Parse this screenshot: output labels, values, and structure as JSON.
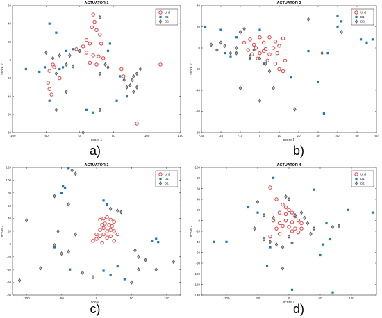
{
  "legend_labels": [
    "Und",
    "D1",
    "D2"
  ],
  "colors": {
    "Und": "#e8393c",
    "D1": "#1f77b4",
    "D2": "#555555"
  },
  "chart_data": [
    {
      "type": "scatter",
      "title": "ACTUATOR 1",
      "xlabel": "score 1",
      "ylabel": "score 2",
      "xlim": [
        -100,
        150
      ],
      "ylim": [
        -80,
        60
      ],
      "xticks": [
        "-100",
        "-50",
        "0",
        "50",
        "100",
        "150"
      ],
      "yticks": [
        "-80",
        "-60",
        "-40",
        "-20",
        "0",
        "20",
        "40",
        "60"
      ],
      "caption": "a)",
      "series": [
        {
          "name": "Und",
          "points": [
            [
              20,
              50
            ],
            [
              22,
              42
            ],
            [
              18,
              36
            ],
            [
              25,
              33
            ],
            [
              30,
              28
            ],
            [
              10,
              22
            ],
            [
              15,
              18
            ],
            [
              5,
              15
            ],
            [
              32,
              18
            ],
            [
              -5,
              12
            ],
            [
              10,
              8
            ],
            [
              20,
              5
            ],
            [
              28,
              4
            ],
            [
              35,
              2
            ],
            [
              15,
              -3
            ],
            [
              25,
              -5
            ],
            [
              -40,
              -5
            ],
            [
              -38,
              -8
            ],
            [
              -45,
              -12
            ],
            [
              -47,
              -25
            ],
            [
              -45,
              -32
            ],
            [
              -42,
              -38
            ],
            [
              -30,
              -20
            ],
            [
              62,
              -10
            ],
            [
              65,
              -18
            ],
            [
              120,
              -5
            ],
            [
              85,
              -70
            ]
          ]
        },
        {
          "name": "D1",
          "points": [
            [
              -45,
              40
            ],
            [
              -35,
              30
            ],
            [
              -80,
              -10
            ],
            [
              -60,
              -13
            ],
            [
              -52,
              -8
            ],
            [
              -20,
              10
            ],
            [
              -10,
              12
            ],
            [
              45,
              18
            ],
            [
              42,
              10
            ],
            [
              -30,
              -10
            ],
            [
              -25,
              -8
            ],
            [
              -45,
              -45
            ],
            [
              60,
              -18
            ],
            [
              70,
              -40
            ],
            [
              55,
              -45
            ],
            [
              10,
              -55
            ],
            [
              20,
              -58
            ]
          ]
        },
        {
          "name": "D2",
          "points": [
            [
              -50,
              8
            ],
            [
              -40,
              2
            ],
            [
              -30,
              5
            ],
            [
              0,
              10
            ],
            [
              30,
              47
            ],
            [
              -20,
              -5
            ],
            [
              -35,
              -15
            ],
            [
              -10,
              -7
            ],
            [
              30,
              -15
            ],
            [
              38,
              -5
            ],
            [
              42,
              -8
            ],
            [
              66,
              -22
            ],
            [
              70,
              -30
            ],
            [
              75,
              -28
            ],
            [
              78,
              -22
            ],
            [
              80,
              -18
            ],
            [
              85,
              -15
            ],
            [
              90,
              -10
            ],
            [
              -35,
              -55
            ],
            [
              -20,
              -35
            ],
            [
              30,
              -55
            ],
            [
              85,
              -30
            ],
            [
              80,
              -35
            ],
            [
              -15,
              5
            ],
            [
              5,
              -80
            ]
          ]
        }
      ]
    },
    {
      "type": "scatter",
      "title": "ACTUATOR 2",
      "xlabel": "score 1",
      "ylabel": "score 2",
      "xlim": [
        -30,
        60
      ],
      "ylim": [
        -80,
        40
      ],
      "xticks": [
        "-30",
        "-20",
        "-10",
        "0",
        "10",
        "20",
        "30",
        "40",
        "50",
        "60"
      ],
      "yticks": [
        "-80",
        "-60",
        "-40",
        "-20",
        "0",
        "20",
        "40"
      ],
      "caption": "b)",
      "series": [
        {
          "name": "Und",
          "points": [
            [
              -5,
              8
            ],
            [
              0,
              10
            ],
            [
              5,
              10
            ],
            [
              -8,
              5
            ],
            [
              -3,
              3
            ],
            [
              2,
              5
            ],
            [
              8,
              6
            ],
            [
              -6,
              -2
            ],
            [
              -2,
              0
            ],
            [
              3,
              -1
            ],
            [
              7,
              0
            ],
            [
              10,
              2
            ],
            [
              -4,
              -6
            ],
            [
              0,
              -5
            ],
            [
              5,
              -6
            ],
            [
              9,
              -5
            ],
            [
              -1,
              -10
            ],
            [
              4,
              -12
            ],
            [
              8,
              -15
            ],
            [
              10,
              -20
            ],
            [
              12,
              -22
            ],
            [
              12,
              9
            ],
            [
              2,
              -3
            ],
            [
              13,
              -12
            ]
          ]
        },
        {
          "name": "D1",
          "points": [
            [
              -28,
              20
            ],
            [
              -20,
              17
            ],
            [
              -12,
              10
            ],
            [
              -15,
              -8
            ],
            [
              -5,
              -10
            ],
            [
              0,
              17
            ],
            [
              -18,
              -5
            ],
            [
              25,
              -3
            ],
            [
              30,
              -32
            ],
            [
              33,
              -62
            ],
            [
              35,
              -5
            ],
            [
              40,
              30
            ],
            [
              42,
              25
            ],
            [
              40,
              20
            ],
            [
              52,
              8
            ],
            [
              55,
              5
            ],
            [
              58,
              8
            ],
            [
              16,
              -28
            ],
            [
              2,
              -15
            ]
          ]
        },
        {
          "name": "D2",
          "points": [
            [
              -25,
              3
            ],
            [
              -22,
              -2
            ],
            [
              -18,
              2
            ],
            [
              -15,
              -5
            ],
            [
              -12,
              0
            ],
            [
              -10,
              15
            ],
            [
              -8,
              18
            ],
            [
              -5,
              -8
            ],
            [
              -3,
              -2
            ],
            [
              0,
              -10
            ],
            [
              3,
              -15
            ],
            [
              5,
              -22
            ],
            [
              -10,
              -38
            ],
            [
              0,
              -50
            ],
            [
              7,
              -38
            ],
            [
              18,
              -58
            ],
            [
              25,
              27
            ],
            [
              32,
              -5
            ],
            [
              42,
              15
            ],
            [
              -20,
              5
            ],
            [
              -12,
              -5
            ]
          ]
        }
      ]
    },
    {
      "type": "scatter",
      "title": "ACTUATOR 3",
      "xlabel": "score 1",
      "ylabel": "score 2",
      "xlim": [
        -120,
        120
      ],
      "ylim": [
        -80,
        120
      ],
      "xticks": [
        "-100",
        "-50",
        "0",
        "50",
        "100"
      ],
      "yticks": [
        "-80",
        "-60",
        "-40",
        "-20",
        "0",
        "20",
        "40",
        "60",
        "80",
        "100",
        "120"
      ],
      "caption": "c)",
      "series": [
        {
          "name": "Und",
          "points": [
            [
              5,
              38
            ],
            [
              10,
              40
            ],
            [
              15,
              42
            ],
            [
              20,
              38
            ],
            [
              25,
              35
            ],
            [
              8,
              30
            ],
            [
              12,
              32
            ],
            [
              18,
              30
            ],
            [
              22,
              28
            ],
            [
              5,
              22
            ],
            [
              10,
              25
            ],
            [
              15,
              20
            ],
            [
              20,
              22
            ],
            [
              25,
              20
            ],
            [
              0,
              15
            ],
            [
              5,
              12
            ],
            [
              10,
              15
            ],
            [
              15,
              10
            ],
            [
              20,
              12
            ],
            [
              -5,
              5
            ],
            [
              0,
              8
            ],
            [
              8,
              2
            ],
            [
              25,
              5
            ],
            [
              30,
              15
            ]
          ]
        },
        {
          "name": "D1",
          "points": [
            [
              -40,
              118
            ],
            [
              -48,
              90
            ],
            [
              -45,
              88
            ],
            [
              -50,
              80
            ],
            [
              10,
              68
            ],
            [
              15,
              62
            ],
            [
              -60,
              -5
            ],
            [
              -38,
              -40
            ],
            [
              10,
              -42
            ],
            [
              20,
              -48
            ],
            [
              30,
              -35
            ],
            [
              40,
              -55
            ],
            [
              80,
              5
            ],
            [
              85,
              8
            ],
            [
              88,
              3
            ]
          ]
        },
        {
          "name": "D2",
          "points": [
            [
              -35,
              115
            ],
            [
              -30,
              110
            ],
            [
              -60,
              75
            ],
            [
              -40,
              62
            ],
            [
              20,
              55
            ],
            [
              30,
              52
            ],
            [
              35,
              50
            ],
            [
              -100,
              37
            ],
            [
              -55,
              20
            ],
            [
              -30,
              15
            ],
            [
              -60,
              -2
            ],
            [
              -40,
              -12
            ],
            [
              -50,
              -15
            ],
            [
              -80,
              -38
            ],
            [
              -20,
              -45
            ],
            [
              -5,
              -52
            ],
            [
              55,
              -10
            ],
            [
              60,
              -20
            ],
            [
              70,
              -25
            ],
            [
              60,
              -40
            ],
            [
              85,
              -40
            ],
            [
              110,
              -28
            ],
            [
              -110,
              -57
            ],
            [
              50,
              -60
            ]
          ]
        }
      ]
    },
    {
      "type": "scatter",
      "title": "ACTUATOR 4",
      "xlabel": "score 1",
      "ylabel": "score 2",
      "xlim": [
        -140,
        140
      ],
      "ylim": [
        -140,
        100
      ],
      "xticks": [
        "-100",
        "-50",
        "0",
        "50",
        "100"
      ],
      "yticks": [
        "-140",
        "-120",
        "-100",
        "-80",
        "-60",
        "-40",
        "-20",
        "0",
        "20",
        "40",
        "60",
        "80",
        "100"
      ],
      "caption": "d)",
      "series": [
        {
          "name": "Und",
          "points": [
            [
              -30,
              62
            ],
            [
              -20,
              40
            ],
            [
              -10,
              30
            ],
            [
              -5,
              25
            ],
            [
              0,
              20
            ],
            [
              -15,
              15
            ],
            [
              -5,
              12
            ],
            [
              5,
              15
            ],
            [
              10,
              8
            ],
            [
              -25,
              0
            ],
            [
              -15,
              -5
            ],
            [
              -5,
              0
            ],
            [
              5,
              -3
            ],
            [
              15,
              0
            ],
            [
              20,
              -5
            ],
            [
              -20,
              -15
            ],
            [
              -10,
              -10
            ],
            [
              0,
              -12
            ],
            [
              10,
              -15
            ],
            [
              20,
              -15
            ],
            [
              -30,
              -30
            ],
            [
              -15,
              -25
            ],
            [
              5,
              -20
            ],
            [
              15,
              -22
            ]
          ]
        },
        {
          "name": "D1",
          "points": [
            [
              -25,
              80
            ],
            [
              -50,
              15
            ],
            [
              -65,
              25
            ],
            [
              -100,
              -40
            ],
            [
              -120,
              -40
            ],
            [
              -30,
              -50
            ],
            [
              -35,
              -85
            ],
            [
              5,
              -130
            ],
            [
              40,
              58
            ],
            [
              60,
              -5
            ],
            [
              65,
              -35
            ],
            [
              55,
              -45
            ],
            [
              50,
              -65
            ],
            [
              70,
              -135
            ],
            [
              95,
              20
            ],
            [
              135,
              15
            ]
          ]
        },
        {
          "name": "D2",
          "points": [
            [
              -5,
              45
            ],
            [
              0,
              40
            ],
            [
              -50,
              35
            ],
            [
              -40,
              10
            ],
            [
              -25,
              5
            ],
            [
              10,
              10
            ],
            [
              20,
              15
            ],
            [
              25,
              5
            ],
            [
              30,
              -5
            ],
            [
              40,
              -15
            ],
            [
              70,
              -12
            ],
            [
              80,
              -10
            ],
            [
              -40,
              -35
            ],
            [
              -30,
              -40
            ],
            [
              -20,
              -45
            ],
            [
              -10,
              -50
            ],
            [
              0,
              -30
            ],
            [
              -10,
              -90
            ],
            [
              5,
              -42
            ],
            [
              -55,
              -15
            ],
            [
              35,
              -25
            ]
          ]
        }
      ]
    }
  ]
}
